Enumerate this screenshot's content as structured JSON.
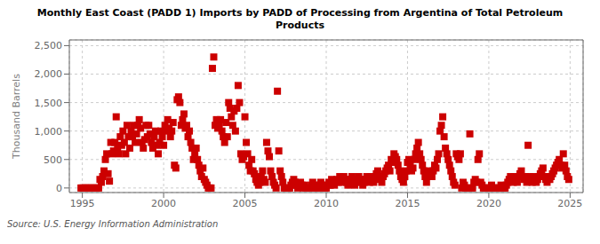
{
  "chart_data": {
    "type": "scatter",
    "title": "Monthly East Coast (PADD 1) Imports by PADD of Processing from Argentina of Total Petroleum\nProducts",
    "ylabel": "Thousand Barrels",
    "source": "Source: U.S. Energy Information Administration",
    "color": "#cc0000",
    "marker": "square",
    "grid": true,
    "xlim": [
      1994.2,
      2025.8
    ],
    "ylim": [
      -80,
      2600
    ],
    "xticks": [
      1995,
      2000,
      2005,
      2010,
      2015,
      2020,
      2025
    ],
    "yticks": [
      0,
      500,
      {
        "value": 1000,
        "label": "1,000"
      },
      {
        "value": 1500,
        "label": "1,500"
      },
      {
        "value": 2000,
        "label": "2,000"
      },
      {
        "value": 2500,
        "label": "2,500"
      }
    ],
    "x": [
      1994.917,
      1995.0,
      1995.083,
      1995.167,
      1995.25,
      1995.333,
      1995.417,
      1995.5,
      1995.583,
      1995.667,
      1995.75,
      1995.833,
      1995.917,
      1996.0,
      1996.083,
      1996.167,
      1996.25,
      1996.333,
      1996.417,
      1996.5,
      1996.583,
      1996.667,
      1996.75,
      1996.833,
      1996.917,
      1997.0,
      1997.083,
      1997.167,
      1997.25,
      1997.333,
      1997.417,
      1997.5,
      1997.583,
      1997.667,
      1997.75,
      1997.833,
      1997.917,
      1998.0,
      1998.083,
      1998.167,
      1998.25,
      1998.333,
      1998.417,
      1998.5,
      1998.583,
      1998.667,
      1998.75,
      1998.833,
      1998.917,
      1999.0,
      1999.083,
      1999.167,
      1999.25,
      1999.333,
      1999.417,
      1999.5,
      1999.583,
      1999.667,
      1999.75,
      1999.833,
      1999.917,
      2000.0,
      2000.083,
      2000.167,
      2000.25,
      2000.333,
      2000.417,
      2000.5,
      2000.583,
      2000.667,
      2000.75,
      2000.833,
      2000.917,
      2001.0,
      2001.083,
      2001.167,
      2001.25,
      2001.333,
      2001.417,
      2001.5,
      2001.583,
      2001.667,
      2001.75,
      2001.833,
      2001.917,
      2002.0,
      2002.083,
      2002.167,
      2002.25,
      2002.333,
      2002.417,
      2002.5,
      2002.583,
      2002.667,
      2002.75,
      2002.833,
      2002.917,
      2003.0,
      2003.083,
      2003.167,
      2003.25,
      2003.333,
      2003.417,
      2003.5,
      2003.583,
      2003.667,
      2003.75,
      2003.833,
      2003.917,
      2004.0,
      2004.083,
      2004.167,
      2004.25,
      2004.333,
      2004.417,
      2004.5,
      2004.583,
      2004.667,
      2004.75,
      2004.833,
      2004.917,
      2005.0,
      2005.083,
      2005.167,
      2005.25,
      2005.333,
      2005.417,
      2005.5,
      2005.583,
      2005.667,
      2005.75,
      2005.833,
      2005.917,
      2006.0,
      2006.083,
      2006.167,
      2006.25,
      2006.333,
      2006.417,
      2006.5,
      2006.583,
      2006.667,
      2006.75,
      2006.833,
      2006.917,
      2007.0,
      2007.083,
      2007.167,
      2007.25,
      2007.333,
      2007.417,
      2007.5,
      2007.583,
      2007.667,
      2007.75,
      2007.833,
      2007.917,
      2008.0,
      2008.083,
      2008.167,
      2008.25,
      2008.333,
      2008.417,
      2008.5,
      2008.583,
      2008.667,
      2008.75,
      2008.833,
      2008.917,
      2009.0,
      2009.083,
      2009.167,
      2009.25,
      2009.333,
      2009.417,
      2009.5,
      2009.583,
      2009.667,
      2009.75,
      2009.833,
      2009.917,
      2010.0,
      2010.083,
      2010.167,
      2010.25,
      2010.333,
      2010.417,
      2010.5,
      2010.583,
      2010.667,
      2010.75,
      2010.833,
      2010.917,
      2011.0,
      2011.083,
      2011.167,
      2011.25,
      2011.333,
      2011.417,
      2011.5,
      2011.583,
      2011.667,
      2011.75,
      2011.833,
      2011.917,
      2012.0,
      2012.083,
      2012.167,
      2012.25,
      2012.333,
      2012.417,
      2012.5,
      2012.583,
      2012.667,
      2012.75,
      2012.833,
      2012.917,
      2013.0,
      2013.083,
      2013.167,
      2013.25,
      2013.333,
      2013.417,
      2013.5,
      2013.583,
      2013.667,
      2013.75,
      2013.833,
      2013.917,
      2014.0,
      2014.083,
      2014.167,
      2014.25,
      2014.333,
      2014.417,
      2014.5,
      2014.583,
      2014.667,
      2014.75,
      2014.833,
      2014.917,
      2015.0,
      2015.083,
      2015.167,
      2015.25,
      2015.333,
      2015.417,
      2015.5,
      2015.583,
      2015.667,
      2015.75,
      2015.833,
      2015.917,
      2016.0,
      2016.083,
      2016.167,
      2016.25,
      2016.333,
      2016.417,
      2016.5,
      2016.583,
      2016.667,
      2016.75,
      2016.833,
      2016.917,
      2017.0,
      2017.083,
      2017.167,
      2017.25,
      2017.333,
      2017.417,
      2017.5,
      2017.583,
      2017.667,
      2017.75,
      2017.833,
      2017.917,
      2018.0,
      2018.083,
      2018.167,
      2018.25,
      2018.333,
      2018.417,
      2018.5,
      2018.583,
      2018.667,
      2018.75,
      2018.833,
      2018.917,
      2019.0,
      2019.083,
      2019.167,
      2019.25,
      2019.333,
      2019.417,
      2019.5,
      2019.583,
      2019.667,
      2019.75,
      2019.833,
      2019.917,
      2020.0,
      2020.083,
      2020.167,
      2020.25,
      2020.333,
      2020.417,
      2020.5,
      2020.583,
      2020.667,
      2020.75,
      2020.833,
      2020.917,
      2021.0,
      2021.083,
      2021.167,
      2021.25,
      2021.333,
      2021.417,
      2021.5,
      2021.583,
      2021.667,
      2021.75,
      2021.833,
      2021.917,
      2022.0,
      2022.083,
      2022.167,
      2022.25,
      2022.333,
      2022.417,
      2022.5,
      2022.583,
      2022.667,
      2022.75,
      2022.833,
      2022.917,
      2023.0,
      2023.083,
      2023.167,
      2023.25,
      2023.333,
      2023.417,
      2023.5,
      2023.583,
      2023.667,
      2023.75,
      2023.833,
      2023.917,
      2024.0,
      2024.083,
      2024.167,
      2024.25,
      2024.333,
      2024.417,
      2024.5,
      2024.583,
      2024.667,
      2024.75,
      2024.833,
      2024.917
    ],
    "values": [
      0,
      0,
      0,
      0,
      0,
      0,
      0,
      0,
      0,
      0,
      0,
      0,
      0,
      0,
      150,
      100,
      200,
      300,
      500,
      600,
      250,
      120,
      800,
      600,
      650,
      800,
      1250,
      700,
      600,
      900,
      750,
      1000,
      800,
      600,
      1100,
      900,
      700,
      1000,
      900,
      1100,
      800,
      950,
      1100,
      1200,
      1050,
      800,
      700,
      850,
      1100,
      900,
      1100,
      950,
      800,
      700,
      900,
      1000,
      750,
      600,
      800,
      1000,
      900,
      750,
      1100,
      1000,
      1200,
      1050,
      900,
      1000,
      1150,
      400,
      350,
      1550,
      1600,
      1500,
      1100,
      1200,
      1300,
      1050,
      1100,
      900,
      1000,
      800,
      700,
      500,
      600,
      700,
      500,
      400,
      300,
      200,
      350,
      150,
      100,
      50,
      0,
      0,
      0,
      2100,
      2300,
      1100,
      1200,
      1050,
      1100,
      1200,
      1000,
      900,
      800,
      1150,
      900,
      1500,
      1400,
      1250,
      1100,
      1350,
      1000,
      1400,
      1800,
      1500,
      600,
      500,
      550,
      1250,
      800,
      600,
      400,
      300,
      500,
      300,
      250,
      150,
      100,
      50,
      100,
      200,
      300,
      150,
      100,
      800,
      650,
      550,
      300,
      200,
      100,
      50,
      0,
      1700,
      650,
      300,
      200,
      100,
      0,
      0,
      0,
      0,
      0,
      50,
      100,
      150,
      100,
      50,
      0,
      50,
      100,
      50,
      0,
      50,
      0,
      0,
      0,
      0,
      50,
      100,
      0,
      50,
      0,
      0,
      50,
      100,
      50,
      0,
      0,
      0,
      50,
      100,
      50,
      150,
      100,
      50,
      100,
      150,
      100,
      200,
      150,
      100,
      200,
      150,
      100,
      50,
      100,
      150,
      200,
      100,
      50,
      100,
      150,
      200,
      150,
      100,
      50,
      100,
      150,
      200,
      150,
      100,
      200,
      150,
      100,
      200,
      250,
      300,
      200,
      150,
      100,
      200,
      250,
      300,
      350,
      400,
      300,
      500,
      450,
      600,
      550,
      500,
      400,
      300,
      200,
      150,
      100,
      200,
      300,
      450,
      500,
      400,
      300,
      350,
      500,
      600,
      700,
      800,
      600,
      500,
      400,
      300,
      200,
      100,
      200,
      300,
      250,
      200,
      300,
      400,
      350,
      500,
      600,
      1000,
      1100,
      1250,
      900,
      700,
      600,
      500,
      400,
      300,
      200,
      100,
      50,
      600,
      550,
      500,
      600,
      0,
      100,
      50,
      0,
      0,
      0,
      950,
      0,
      0,
      100,
      150,
      100,
      500,
      600,
      100,
      50,
      0,
      0,
      0,
      0,
      0,
      0,
      50,
      0,
      0,
      0,
      0,
      0,
      0,
      50,
      0,
      0,
      0,
      50,
      100,
      150,
      200,
      150,
      100,
      200,
      150,
      100,
      200,
      250,
      300,
      200,
      150,
      200,
      100,
      750,
      200,
      150,
      100,
      200,
      150,
      100,
      150,
      200,
      250,
      300,
      350,
      200,
      150,
      100,
      200,
      150,
      200,
      250,
      300,
      350,
      400,
      450,
      500,
      400,
      350,
      600,
      400,
      300,
      200,
      150
    ]
  }
}
